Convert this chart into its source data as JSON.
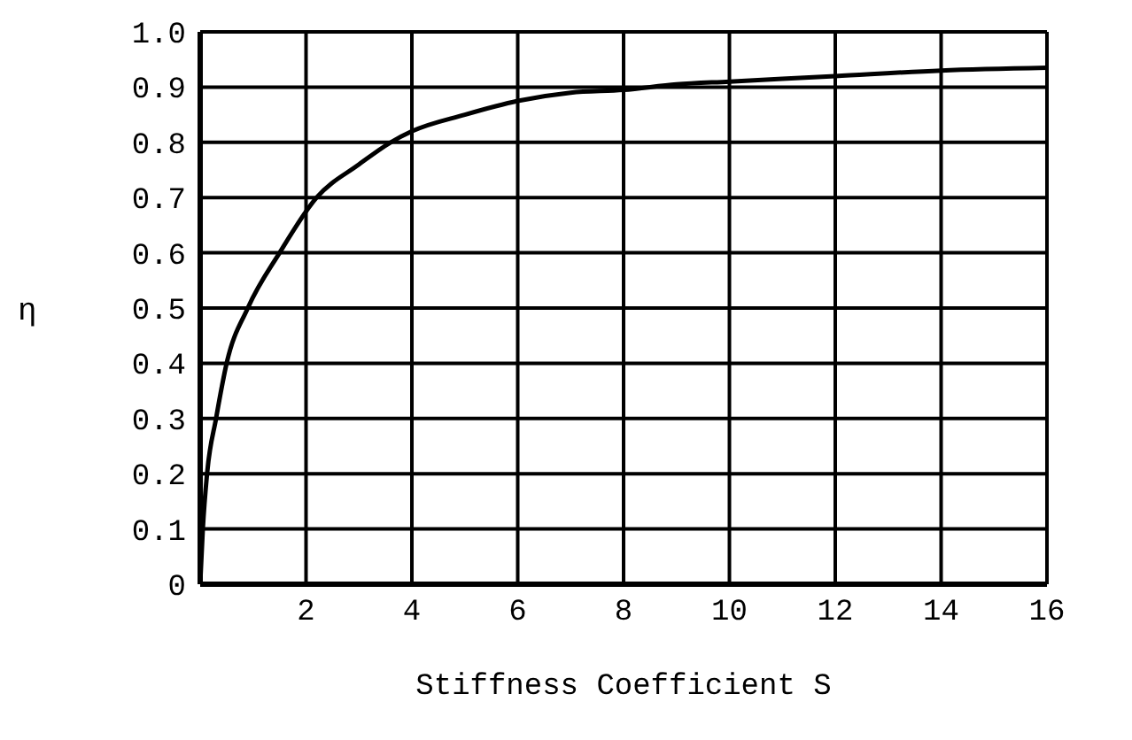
{
  "chart_data": {
    "type": "line",
    "xlabel": "Stiffness Coefficient  S",
    "ylabel": "η",
    "x": [
      0,
      0.05,
      0.13,
      0.3,
      0.5,
      0.9,
      1.5,
      2.2,
      3,
      3.6,
      4,
      5,
      6,
      7,
      8,
      9,
      10,
      12,
      14,
      16
    ],
    "series": [
      {
        "color": "#000000",
        "values": [
          0,
          0.1,
          0.2,
          0.3,
          0.4,
          0.5,
          0.6,
          0.7,
          0.76,
          0.8,
          0.82,
          0.85,
          0.875,
          0.89,
          0.895,
          0.905,
          0.91,
          0.92,
          0.93,
          0.935
        ]
      }
    ],
    "xlim": [
      0,
      16
    ],
    "xticks": [
      {
        "value": 0,
        "label": null
      },
      2,
      4,
      6,
      8,
      10,
      12,
      14,
      16
    ],
    "ylim": [
      0,
      1.0
    ],
    "yticks": [
      0,
      {
        "value": 0.1,
        "label": "0.1"
      },
      {
        "value": 0.2,
        "label": "0.2"
      },
      {
        "value": 0.3,
        "label": "0.3"
      },
      {
        "value": 0.4,
        "label": "0.4"
      },
      {
        "value": 0.5,
        "label": "0.5"
      },
      {
        "value": 0.6,
        "label": "0.6"
      },
      {
        "value": 0.7,
        "label": "0.7"
      },
      {
        "value": 0.8,
        "label": "0.8"
      },
      {
        "value": 0.9,
        "label": "0.9"
      },
      {
        "value": 1.0,
        "label": "1.0"
      }
    ],
    "grid": true,
    "marker": "none",
    "line_style": "solid"
  }
}
